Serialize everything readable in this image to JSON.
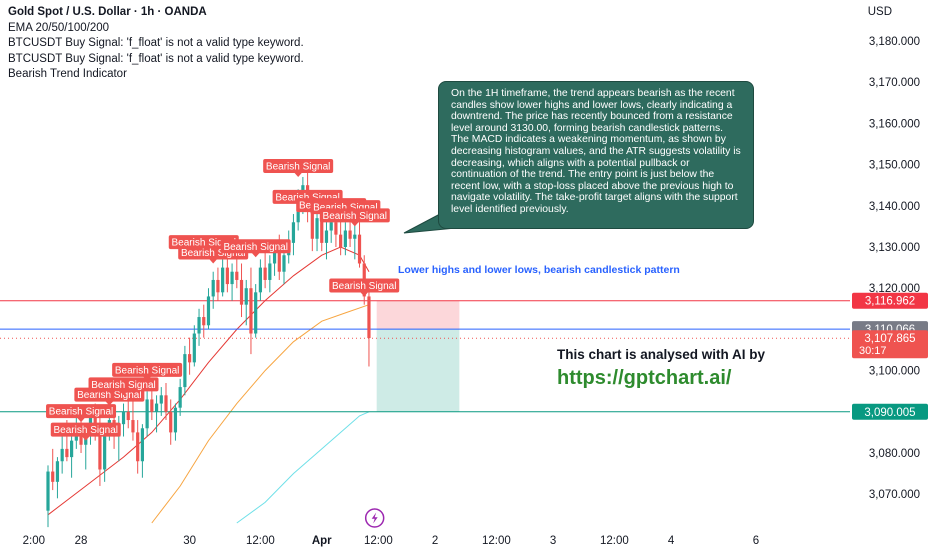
{
  "header": {
    "title": "Gold Spot / U.S. Dollar · 1h · OANDA",
    "indicators": [
      "EMA 20/50/100/200",
      "BTCUSDT Buy Signal: 'f_float' is not a valid type keyword.",
      "BTCUSDT Buy Signal: 'f_float' is not a valid type keyword.",
      "Bearish Trend Indicator"
    ],
    "currency": "USD"
  },
  "analysis_box": {
    "text": "On the 1H timeframe, the trend appears bearish as the recent candles show lower highs and lower lows, clearly indicating a downtrend. The price has recently bounced from a resistance level around 3130.00, forming bearish candlestick patterns. The MACD indicates a weakening momentum, as shown by decreasing histogram values, and the ATR suggests volatility is decreasing, which aligns with a potential pullback or continuation of the trend. The entry point is just below the recent low, with a stop-loss placed above the previous high to navigate volatility. The take-profit target aligns with the support level identified previously."
  },
  "annotation": "Lower highs and lower lows, bearish candlestick pattern",
  "promo": {
    "line1": "This chart is analysed with AI by",
    "line2": "https://gptchart.ai/"
  },
  "colors": {
    "up": "#26a69a",
    "down": "#ef5350",
    "ema20": "#e53935",
    "ema50": "#f7a541",
    "ema100": "#6fe0e8",
    "stop": "#f23645",
    "entry": "#2962ff",
    "target": "#089981",
    "signal_label": "#ef5350"
  },
  "chart_data": {
    "type": "candlestick",
    "symbol": "XAUUSD",
    "timeframe": "1h",
    "ylim": [
      3063,
      3189
    ],
    "y_ticks": [
      3070,
      3080,
      3090,
      3100,
      3110,
      3120,
      3130,
      3140,
      3150,
      3160,
      3170,
      3180
    ],
    "y_tick_labels": [
      "3,070.000",
      "3,080.000",
      "3,090.000",
      "3,100.000",
      "3,110.000",
      "3,120.000",
      "3,130.000",
      "3,140.000",
      "3,150.000",
      "3,160.000",
      "3,170.000",
      "3,180.000"
    ],
    "x_ticks": [
      {
        "label": "2:00",
        "bar": -3
      },
      {
        "label": "28",
        "bar": 7
      },
      {
        "label": "30",
        "bar": 30
      },
      {
        "label": "12:00",
        "bar": 45
      },
      {
        "label": "Apr",
        "bar": 58
      },
      {
        "label": "12:00",
        "bar": 70
      },
      {
        "label": "2",
        "bar": 82
      },
      {
        "label": "12:00",
        "bar": 95
      },
      {
        "label": "3",
        "bar": 107
      },
      {
        "label": "12:00",
        "bar": 120
      },
      {
        "label": "4",
        "bar": 132
      },
      {
        "label": "6",
        "bar": 150
      }
    ],
    "ohlc": [
      [
        3066.0,
        3077.0,
        3062.0,
        3075.5
      ],
      [
        3075.5,
        3081.0,
        3071.0,
        3073.0
      ],
      [
        3073.0,
        3079.0,
        3069.0,
        3078.0
      ],
      [
        3078.0,
        3084.0,
        3075.0,
        3081.0
      ],
      [
        3081.0,
        3088.0,
        3078.0,
        3079.0
      ],
      [
        3079.0,
        3085.0,
        3074.0,
        3083.0
      ],
      [
        3083.0,
        3090.0,
        3081.0,
        3087.0
      ],
      [
        3087.0,
        3089.0,
        3080.0,
        3082.0
      ],
      [
        3082.0,
        3087.0,
        3076.0,
        3084.0
      ],
      [
        3084.0,
        3091.0,
        3082.0,
        3089.0
      ],
      [
        3089.0,
        3092.0,
        3083.0,
        3085.0
      ],
      [
        3085.0,
        3090.0,
        3072.0,
        3076.0
      ],
      [
        3076.0,
        3087.0,
        3073.0,
        3086.0
      ],
      [
        3086.0,
        3092.0,
        3083.0,
        3088.0
      ],
      [
        3088.0,
        3091.0,
        3081.0,
        3084.0
      ],
      [
        3084.0,
        3089.0,
        3078.0,
        3087.0
      ],
      [
        3087.0,
        3092.0,
        3084.0,
        3090.0
      ],
      [
        3090.0,
        3094.0,
        3086.0,
        3088.0
      ],
      [
        3088.0,
        3093.0,
        3083.0,
        3085.0
      ],
      [
        3085.0,
        3088.0,
        3075.0,
        3078.0
      ],
      [
        3078.0,
        3087.0,
        3074.0,
        3086.0
      ],
      [
        3086.0,
        3095.0,
        3084.0,
        3093.0
      ],
      [
        3093.0,
        3096.0,
        3088.0,
        3090.0
      ],
      [
        3090.0,
        3094.0,
        3085.0,
        3092.0
      ],
      [
        3092.0,
        3096.0,
        3089.0,
        3094.0
      ],
      [
        3094.0,
        3097.0,
        3088.0,
        3090.0
      ],
      [
        3090.0,
        3093.0,
        3082.0,
        3085.0
      ],
      [
        3085.0,
        3092.0,
        3083.0,
        3091.0
      ],
      [
        3091.0,
        3098.0,
        3089.0,
        3096.0
      ],
      [
        3096.0,
        3106.0,
        3094.0,
        3104.0
      ],
      [
        3104.0,
        3108.0,
        3099.0,
        3102.0
      ],
      [
        3102.0,
        3111.0,
        3101.0,
        3109.0
      ],
      [
        3109.0,
        3115.0,
        3106.0,
        3113.0
      ],
      [
        3113.0,
        3116.0,
        3108.0,
        3111.0
      ],
      [
        3111.0,
        3120.0,
        3110.0,
        3118.0
      ],
      [
        3118.0,
        3124.0,
        3115.0,
        3122.0
      ],
      [
        3122.0,
        3125.0,
        3117.0,
        3119.0
      ],
      [
        3119.0,
        3127.0,
        3118.0,
        3125.0
      ],
      [
        3125.0,
        3129.0,
        3119.0,
        3121.0
      ],
      [
        3121.0,
        3126.0,
        3117.0,
        3124.0
      ],
      [
        3124.0,
        3128.0,
        3120.0,
        3122.0
      ],
      [
        3122.0,
        3126.0,
        3113.0,
        3116.0
      ],
      [
        3116.0,
        3122.0,
        3111.0,
        3120.0
      ],
      [
        3120.0,
        3125.0,
        3104.0,
        3109.0
      ],
      [
        3109.0,
        3121.0,
        3108.0,
        3119.0
      ],
      [
        3119.0,
        3127.0,
        3117.0,
        3125.0
      ],
      [
        3125.0,
        3129.0,
        3120.0,
        3122.0
      ],
      [
        3122.0,
        3128.0,
        3119.0,
        3126.0
      ],
      [
        3126.0,
        3131.0,
        3123.0,
        3129.0
      ],
      [
        3129.0,
        3133.0,
        3122.0,
        3124.0
      ],
      [
        3124.0,
        3130.0,
        3121.0,
        3128.0
      ],
      [
        3128.0,
        3134.0,
        3126.0,
        3131.0
      ],
      [
        3131.0,
        3138.0,
        3128.0,
        3136.0
      ],
      [
        3136.0,
        3144.0,
        3134.0,
        3142.0
      ],
      [
        3142.0,
        3147.0,
        3138.0,
        3145.0
      ],
      [
        3145.0,
        3148.0,
        3136.0,
        3139.0
      ],
      [
        3139.0,
        3142.0,
        3129.0,
        3132.0
      ],
      [
        3132.0,
        3139.0,
        3129.0,
        3137.0
      ],
      [
        3137.0,
        3140.0,
        3129.0,
        3131.0
      ],
      [
        3131.0,
        3137.0,
        3127.0,
        3134.0
      ],
      [
        3134.0,
        3139.0,
        3131.0,
        3136.0
      ],
      [
        3136.0,
        3140.0,
        3130.0,
        3133.0
      ],
      [
        3133.0,
        3137.0,
        3128.0,
        3130.0
      ],
      [
        3130.0,
        3136.0,
        3128.0,
        3134.0
      ],
      [
        3134.0,
        3138.0,
        3130.0,
        3132.0
      ],
      [
        3132.0,
        3136.0,
        3127.0,
        3133.0
      ],
      [
        3133.0,
        3136.0,
        3125.0,
        3126.0
      ],
      [
        3126.0,
        3128.0,
        3116.0,
        3118.0
      ],
      [
        3118.0,
        3120.0,
        3101.0,
        3107.9
      ]
    ],
    "ema": [
      {
        "name": "EMA 20",
        "color": "#e53935",
        "points": [
          [
            0,
            3065
          ],
          [
            8,
            3072
          ],
          [
            16,
            3079
          ],
          [
            22,
            3085
          ],
          [
            28,
            3093
          ],
          [
            34,
            3102
          ],
          [
            40,
            3110
          ],
          [
            46,
            3117
          ],
          [
            52,
            3123
          ],
          [
            58,
            3128
          ],
          [
            62,
            3130
          ],
          [
            66,
            3128
          ],
          [
            68,
            3124
          ]
        ]
      },
      {
        "name": "EMA 50",
        "color": "#f7a541",
        "points": [
          [
            22,
            3063
          ],
          [
            28,
            3072
          ],
          [
            34,
            3083
          ],
          [
            40,
            3092
          ],
          [
            46,
            3100
          ],
          [
            52,
            3107
          ],
          [
            58,
            3112
          ],
          [
            63,
            3114
          ],
          [
            68,
            3116
          ]
        ]
      },
      {
        "name": "EMA 100",
        "color": "#6fe0e8",
        "points": [
          [
            40,
            3063
          ],
          [
            46,
            3068
          ],
          [
            52,
            3075
          ],
          [
            58,
            3081
          ],
          [
            63,
            3086
          ],
          [
            66,
            3089
          ],
          [
            68,
            3090
          ]
        ]
      }
    ],
    "price_levels": [
      {
        "name": "stop",
        "value": 3116.962,
        "label": "3,116.962",
        "color": "#f23645"
      },
      {
        "name": "entry",
        "value": 3110.066,
        "label": "3,110.066",
        "color": "#2962ff"
      },
      {
        "name": "target",
        "value": 3090.005,
        "label": "3,090.005",
        "color": "#089981"
      }
    ],
    "current_price": {
      "value": 3107.865,
      "label": "3,107.865",
      "countdown": "30:17"
    },
    "position": {
      "bar_start": 69,
      "bar_end": 88,
      "entry": 3110.066,
      "stop": 3116.962,
      "target": 3090.005
    },
    "signals": [
      {
        "label": "Bearish Signal",
        "bar": 7,
        "price": 3087.5
      },
      {
        "label": "Bearish Signal",
        "bar": 8,
        "price": 3083.0
      },
      {
        "label": "Bearish Signal",
        "bar": 13,
        "price": 3091.5
      },
      {
        "label": "Bearish Signal",
        "bar": 16,
        "price": 3094.0
      },
      {
        "label": "Bearish Signal",
        "bar": 21,
        "price": 3097.5
      },
      {
        "label": "Bearish Signal",
        "bar": 33,
        "price": 3128.5
      },
      {
        "label": "Bearish Signal",
        "bar": 35,
        "price": 3126.0
      },
      {
        "label": "Bearish Signal",
        "bar": 44,
        "price": 3127.5
      },
      {
        "label": "Bearish Signal",
        "bar": 53,
        "price": 3147.0
      },
      {
        "label": "Bearish Signal",
        "bar": 55,
        "price": 3139.5
      },
      {
        "label": "Bearish Signal",
        "bar": 60,
        "price": 3137.5
      },
      {
        "label": "Bearish Signal",
        "bar": 63,
        "price": 3137.0
      },
      {
        "label": "Bearish Signal",
        "bar": 65,
        "price": 3135.0
      },
      {
        "label": "Bearish Signal",
        "bar": 67,
        "price": 3118.0
      }
    ]
  }
}
